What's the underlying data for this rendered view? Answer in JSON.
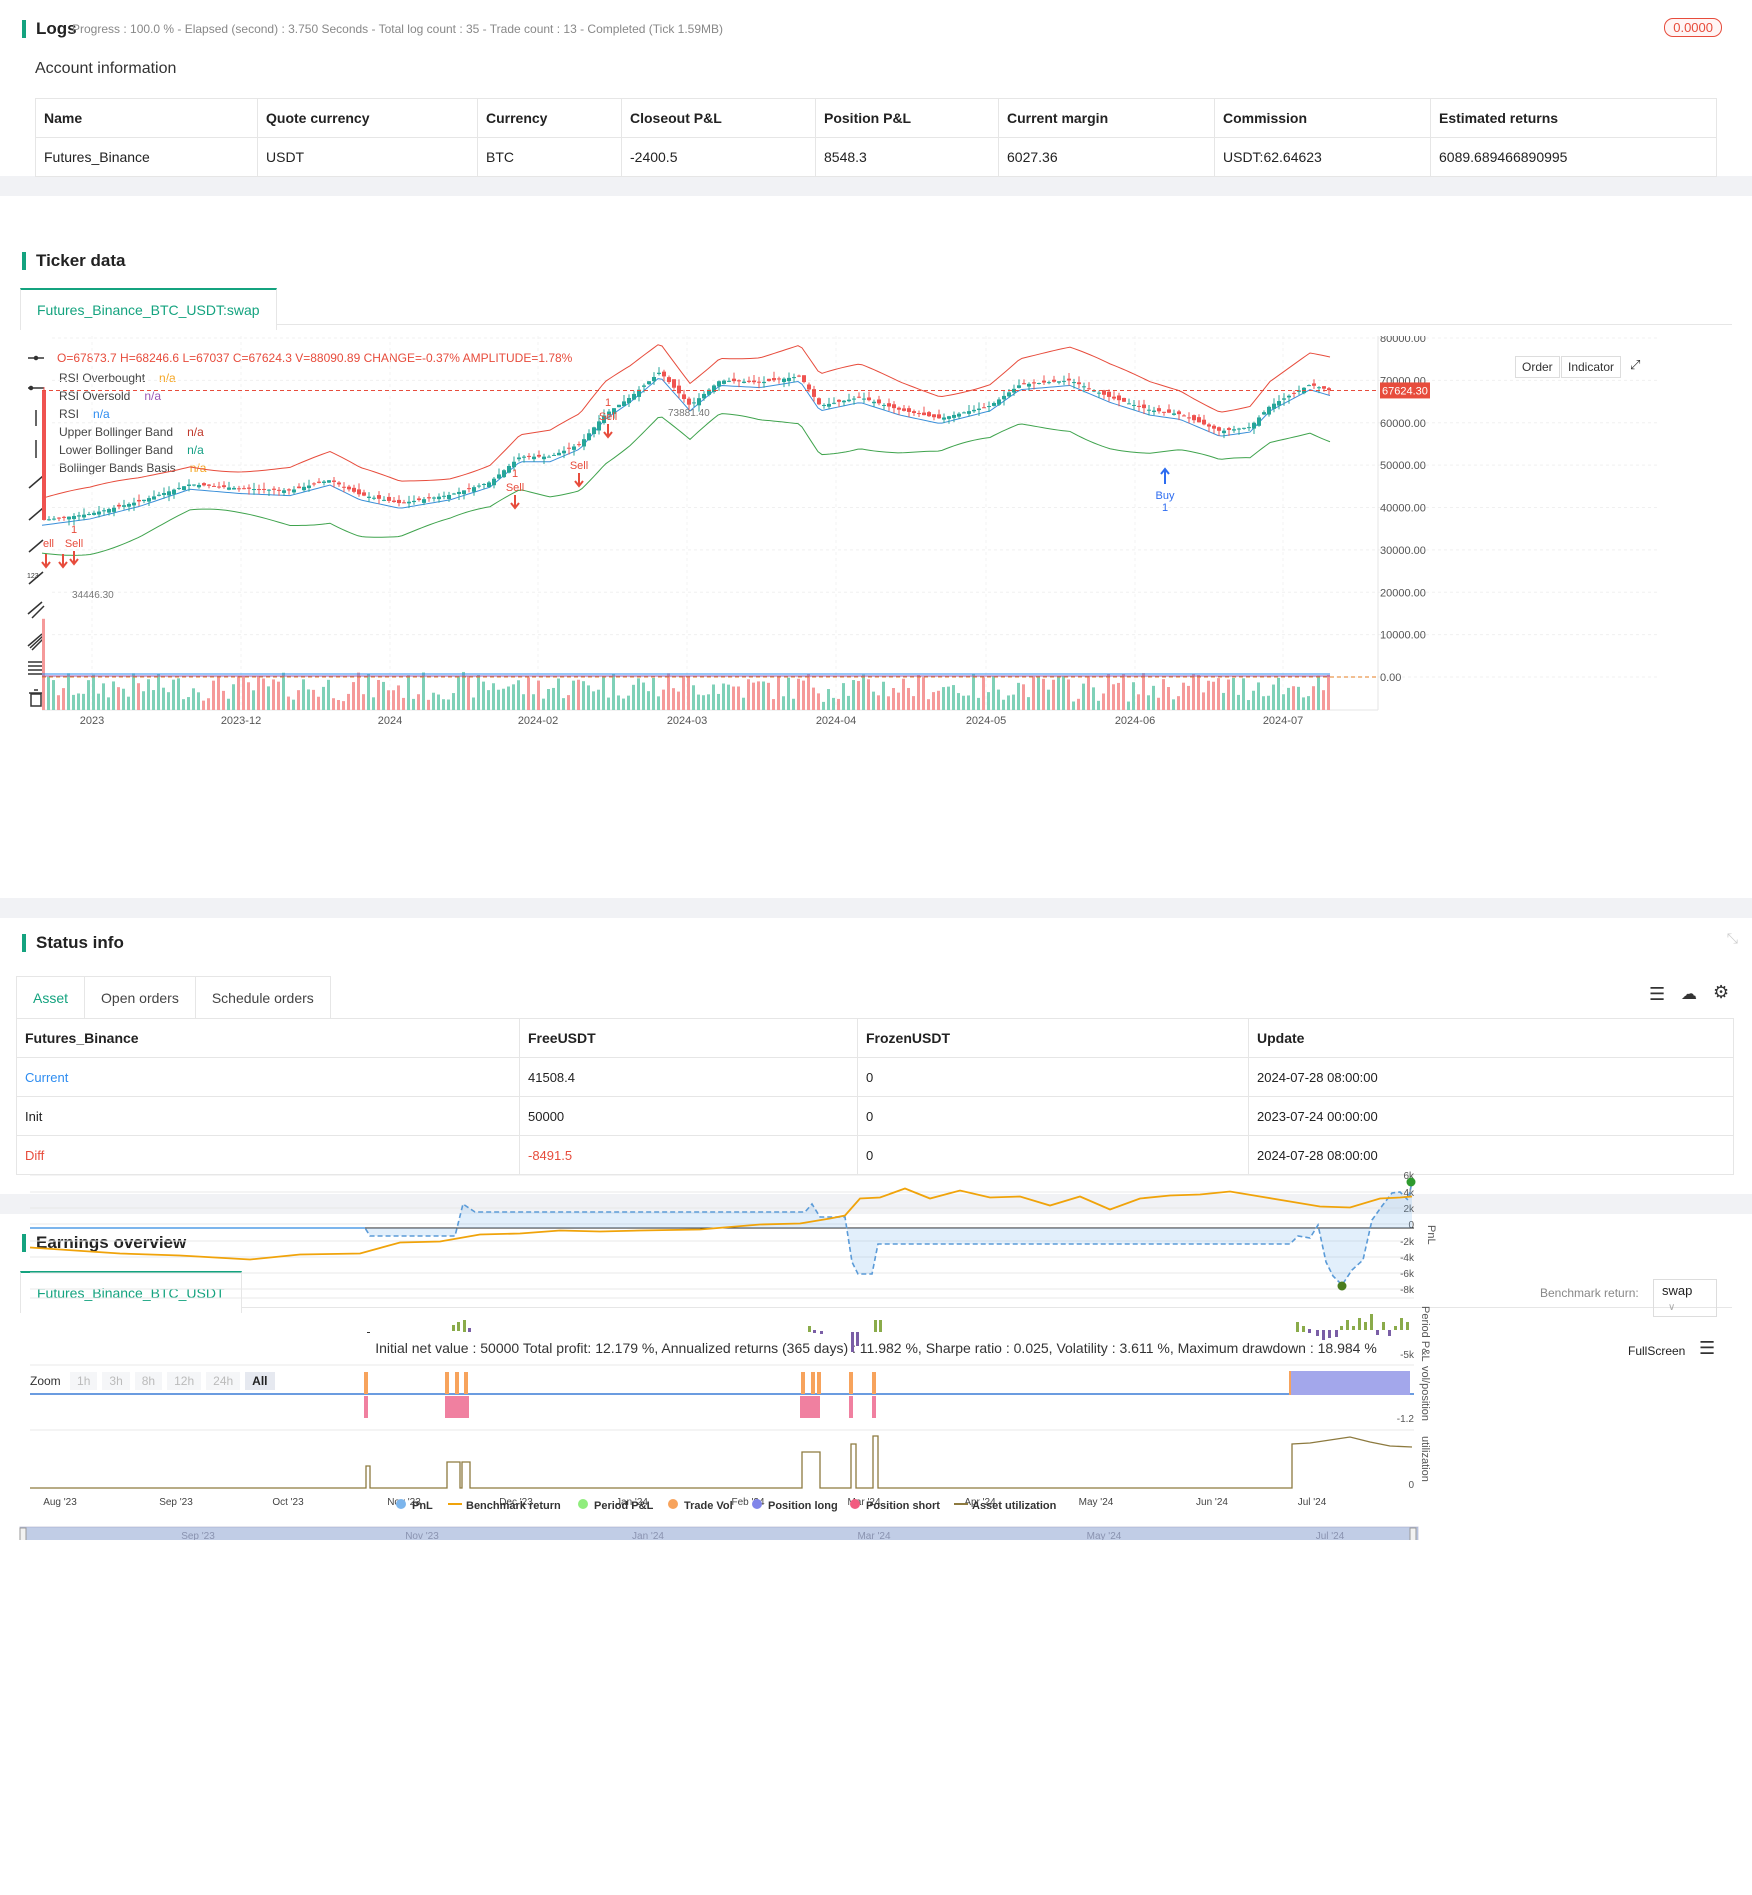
{
  "logs": {
    "title": "Logs",
    "status": "Progress : 100.0 % - Elapsed (second) : 3.750  Seconds - Total log count : 35 - Trade count : 13 - Completed (Tick 1.59MB)",
    "badge": "0.0000",
    "account_title": "Account information",
    "columns": [
      "Name",
      "Quote currency",
      "Currency",
      "Closeout P&L",
      "Position P&L",
      "Current margin",
      "Commission",
      "Estimated returns"
    ],
    "row": [
      "Futures_Binance",
      "USDT",
      "BTC",
      "-2400.5",
      "8548.3",
      "6027.36",
      "USDT:62.64623",
      "6089.689466890995"
    ]
  },
  "ticker": {
    "title": "Ticker data",
    "tab": "Futures_Binance_BTC_USDT:swap",
    "ohlc": "O=67873.7 H=68246.6 L=67037 C=67624.3 V=88090.89 CHANGE=-0.37% AMPLITUDE=1.78%",
    "legend": [
      {
        "name": "RSI Overbought",
        "value": "n/a",
        "color": "#f5a623"
      },
      {
        "name": "RSI Oversold",
        "value": "n/a",
        "color": "#9b59b6"
      },
      {
        "name": "RSI",
        "value": "n/a",
        "color": "#2d8cf0"
      },
      {
        "name": "Upper Bollinger Band",
        "value": "n/a",
        "color": "#c0392b"
      },
      {
        "name": "Lower Bollinger Band",
        "value": "n/a",
        "color": "#16a085"
      },
      {
        "name": "Bollinger Bands Basis",
        "value": "n/a",
        "color": "#f5a623"
      }
    ],
    "buttons": {
      "order": "Order",
      "indicator": "Indicator"
    },
    "price_label": "67624.30",
    "high_label": "73881.40",
    "low_label": "34446.30",
    "y_ticks": [
      "80000.00",
      "70000.00",
      "60000.00",
      "50000.00",
      "40000.00",
      "30000.00",
      "20000.00",
      "10000.00",
      "0.00"
    ],
    "x_ticks": [
      "2023",
      "2023-12",
      "2024",
      "2024-02",
      "2024-03",
      "2024-04",
      "2024-05",
      "2024-06",
      "2024-07"
    ],
    "signals": {
      "sell": "Sell",
      "buy": "Buy",
      "one": "1",
      "ell": "ell"
    }
  },
  "status": {
    "title": "Status info",
    "tabs": [
      "Asset",
      "Open orders",
      "Schedule orders"
    ],
    "columns": [
      "Futures_Binance",
      "FreeUSDT",
      "FrozenUSDT",
      "Update"
    ],
    "rows": [
      {
        "label": "Current",
        "free": "41508.4",
        "frozen": "0",
        "update": "2024-07-28 08:00:00"
      },
      {
        "label": "Init",
        "free": "50000",
        "frozen": "0",
        "update": "2023-07-24 00:00:00"
      },
      {
        "label": "Diff",
        "free": "-8491.5",
        "frozen": "0",
        "update": "2024-07-28 08:00:00"
      }
    ]
  },
  "earnings": {
    "title": "Earnings overview",
    "tab": "Futures_Binance_BTC_USDT",
    "benchmark_label": "Benchmark return:",
    "benchmark_value": "swap",
    "summary": "Initial net value : 50000 Total profit: 12.179 %, Annualized returns (365 days) : 11.982 %, Sharpe ratio : 0.025, Volatility : 3.611 %, Maximum drawdown : 18.984 %",
    "fullscreen": "FullScreen",
    "zoom_label": "Zoom",
    "zoom_options": [
      "1h",
      "3h",
      "8h",
      "12h",
      "24h",
      "All"
    ],
    "pnl_ticks": [
      "6k",
      "4k",
      "2k",
      "0",
      "-2k",
      "-4k",
      "-6k",
      "-8k"
    ],
    "axis_titles": [
      "PnL",
      "Period P&L",
      "vol/position",
      "utilization"
    ],
    "period_tick": "-5k",
    "vol_tick": "-1.2",
    "util_tick": "0",
    "x_ticks": [
      "Aug '23",
      "Sep '23",
      "Oct '23",
      "Nov '23",
      "Dec '23",
      "Jan '24",
      "Feb '24",
      "Mar '24",
      "Apr '24",
      "May '24",
      "Jun '24",
      "Jul '24"
    ],
    "nav_ticks": [
      "Sep '23",
      "Nov '23",
      "Jan '24",
      "Mar '24",
      "May '24",
      "Jul '24"
    ],
    "legend": [
      {
        "name": "PnL",
        "color": "#7cb5ec"
      },
      {
        "name": "Benchmark return",
        "color": "#f0a30a"
      },
      {
        "name": "Period P&L",
        "color": "#90ed7d"
      },
      {
        "name": "Trade Vol",
        "color": "#f7a35c"
      },
      {
        "name": "Position long",
        "color": "#8085e9"
      },
      {
        "name": "Position short",
        "color": "#f15c80"
      },
      {
        "name": "Asset utilization",
        "color": "#8d7a3f"
      }
    ]
  }
}
